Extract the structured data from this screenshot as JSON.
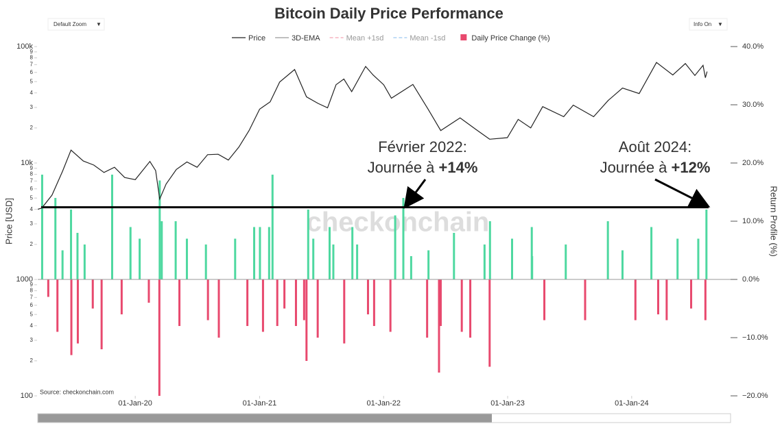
{
  "controls": {
    "zoom": "Default Zoom",
    "info": "Info On"
  },
  "chart_data": {
    "type": "price-returns",
    "title": "Bitcoin Daily Price Performance",
    "y_label": "Price [USD]",
    "y2_label": "Return Profile (%)",
    "source": "Source: checkonchain.com",
    "watermark": "checkonchain",
    "log_y": true,
    "xlim": [
      "2019-03-20",
      "2024-10-18"
    ],
    "xticks": [
      {
        "value": "2020-01-01",
        "label": "01-Jan-20"
      },
      {
        "value": "2021-01-01",
        "label": "01-Jan-21"
      },
      {
        "value": "2022-01-01",
        "label": "01-Jan-22"
      },
      {
        "value": "2023-01-01",
        "label": "01-Jan-23"
      },
      {
        "value": "2024-01-01",
        "label": "01-Jan-24"
      }
    ],
    "ylim": [
      100,
      100000
    ],
    "yticks": [
      100,
      {
        "value": 200,
        "label": "2"
      },
      {
        "value": 300,
        "label": "3"
      },
      {
        "value": 400,
        "label": "4"
      },
      {
        "value": 500,
        "label": "5"
      },
      {
        "value": 600,
        "label": "6"
      },
      {
        "value": 700,
        "label": "7"
      },
      {
        "value": 800,
        "label": "8"
      },
      {
        "value": 900,
        "label": "9"
      },
      1000,
      {
        "value": 2000,
        "label": "2"
      },
      {
        "value": 3000,
        "label": "3"
      },
      {
        "value": 4000,
        "label": "4"
      },
      {
        "value": 5000,
        "label": "5"
      },
      {
        "value": 6000,
        "label": "6"
      },
      {
        "value": 7000,
        "label": "7"
      },
      {
        "value": 8000,
        "label": "8"
      },
      {
        "value": 9000,
        "label": "9"
      },
      {
        "value": 10000,
        "label": "10k"
      },
      {
        "value": 20000,
        "label": "2"
      },
      {
        "value": 30000,
        "label": "3"
      },
      {
        "value": 40000,
        "label": "4"
      },
      {
        "value": 50000,
        "label": "5"
      },
      {
        "value": 60000,
        "label": "6"
      },
      {
        "value": 70000,
        "label": "7"
      },
      {
        "value": 80000,
        "label": "8"
      },
      {
        "value": 90000,
        "label": "9"
      },
      {
        "value": 100000,
        "label": "100k"
      }
    ],
    "y2lim": [
      -20,
      40
    ],
    "y2ticks": [
      {
        "value": -20,
        "label": "−20.0%"
      },
      {
        "value": -10,
        "label": "−10.0%"
      },
      {
        "value": 0,
        "label": "0.0%"
      },
      {
        "value": 10,
        "label": "10.0%"
      },
      {
        "value": 20,
        "label": "20.0%"
      },
      {
        "value": 30,
        "label": "30.0%"
      },
      {
        "value": 40,
        "label": "40.0%"
      }
    ],
    "legend_extra": [
      {
        "name": "3D-EMA",
        "color": "#999999"
      },
      {
        "name": "Mean +1sd",
        "color": "#f4a3b4"
      },
      {
        "name": "Mean -1sd",
        "color": "#9cc8f0"
      }
    ],
    "series": [
      {
        "name": "Price",
        "color": "#222222",
        "x": [
          "2019-03-20",
          "2019-04-01",
          "2019-05-01",
          "2019-06-01",
          "2019-06-26",
          "2019-08-01",
          "2019-09-01",
          "2019-10-01",
          "2019-11-01",
          "2019-12-01",
          "2020-01-01",
          "2020-02-13",
          "2020-03-01",
          "2020-03-13",
          "2020-04-01",
          "2020-05-01",
          "2020-06-01",
          "2020-07-01",
          "2020-08-01",
          "2020-09-01",
          "2020-10-01",
          "2020-11-01",
          "2020-12-01",
          "2021-01-01",
          "2021-02-01",
          "2021-03-01",
          "2021-04-14",
          "2021-05-19",
          "2021-06-22",
          "2021-07-20",
          "2021-08-14",
          "2021-09-06",
          "2021-09-29",
          "2021-11-09",
          "2021-12-01",
          "2022-01-01",
          "2022-01-24",
          "2022-03-28",
          "2022-05-12",
          "2022-06-18",
          "2022-08-14",
          "2022-10-01",
          "2022-11-09",
          "2022-12-31",
          "2023-02-01",
          "2023-03-10",
          "2023-04-14",
          "2023-06-15",
          "2023-07-13",
          "2023-09-11",
          "2023-10-24",
          "2023-12-05",
          "2024-01-23",
          "2024-03-14",
          "2024-05-01",
          "2024-06-07",
          "2024-07-05",
          "2024-07-29",
          "2024-08-05",
          "2024-08-10"
        ],
        "values": [
          4000,
          4100,
          5300,
          8500,
          12900,
          10400,
          9600,
          8300,
          9200,
          7500,
          7200,
          10300,
          8600,
          4900,
          6600,
          8800,
          10200,
          9200,
          11800,
          11900,
          10600,
          13700,
          19000,
          29000,
          33500,
          49600,
          63500,
          37000,
          32500,
          29800,
          47000,
          52600,
          41000,
          67500,
          57000,
          47000,
          36000,
          47300,
          29000,
          19000,
          24400,
          19300,
          16000,
          16500,
          23700,
          20000,
          30500,
          25000,
          31400,
          25000,
          34500,
          44000,
          39500,
          73000,
          57000,
          71500,
          56500,
          69000,
          54000,
          61000
        ]
      },
      {
        "name": "Daily Price Change (%)",
        "axis": "y2",
        "color": "#e8496e",
        "positive_color": "#4ed8a0",
        "x": [
          "2019-04-02",
          "2019-04-20",
          "2019-05-11",
          "2019-05-17",
          "2019-06-01",
          "2019-06-26",
          "2019-06-27",
          "2019-07-15",
          "2019-07-16",
          "2019-08-05",
          "2019-08-29",
          "2019-09-24",
          "2019-10-25",
          "2019-11-22",
          "2019-12-18",
          "2020-01-14",
          "2020-02-10",
          "2020-03-12",
          "2020-03-13",
          "2020-03-19",
          "2020-04-29",
          "2020-05-10",
          "2020-06-01",
          "2020-07-27",
          "2020-08-02",
          "2020-09-03",
          "2020-10-21",
          "2020-11-26",
          "2020-12-16",
          "2021-01-02",
          "2021-01-11",
          "2021-01-29",
          "2021-02-08",
          "2021-02-22",
          "2021-03-15",
          "2021-04-18",
          "2021-05-12",
          "2021-05-19",
          "2021-05-24",
          "2021-06-08",
          "2021-06-21",
          "2021-07-26",
          "2021-08-06",
          "2021-09-07",
          "2021-10-01",
          "2021-10-15",
          "2021-11-16",
          "2021-12-04",
          "2022-01-21",
          "2022-02-04",
          "2022-02-28",
          "2022-03-23",
          "2022-05-09",
          "2022-05-13",
          "2022-06-13",
          "2022-06-18",
          "2022-07-27",
          "2022-08-19",
          "2022-09-13",
          "2022-10-25",
          "2022-11-09",
          "2022-11-10",
          "2023-01-14",
          "2023-03-13",
          "2023-03-14",
          "2023-04-19",
          "2023-06-21",
          "2023-08-17",
          "2023-10-23",
          "2023-12-05",
          "2024-01-12",
          "2024-02-28",
          "2024-03-19",
          "2024-04-13",
          "2024-05-15",
          "2024-06-24",
          "2024-07-15",
          "2024-08-05",
          "2024-08-08"
        ],
        "values": [
          18,
          -3,
          14,
          -9,
          5,
          12,
          -13,
          8,
          -11,
          6,
          -5,
          -12,
          18,
          -6,
          9,
          7,
          -4,
          -20,
          17,
          10,
          10,
          -8,
          7,
          6,
          -7,
          -10,
          7,
          -8,
          9,
          9,
          -9,
          9,
          18,
          -8,
          -5,
          -8,
          -7,
          -14,
          12,
          7,
          -10,
          9,
          6,
          -11,
          9,
          6,
          -6,
          -8,
          -9,
          11,
          14,
          4,
          -10,
          5,
          -16,
          -8,
          8,
          -9,
          -10,
          6,
          -15,
          10,
          7,
          9,
          4,
          -7,
          6,
          -7,
          10,
          5,
          -7,
          9,
          -6,
          -7,
          7,
          -5,
          7,
          -7,
          12
        ]
      }
    ],
    "reference_line": 12.4,
    "annotations": [
      {
        "line1": "Février 2022:",
        "line2": "Journée à ",
        "bold": "+14%"
      },
      {
        "line1": "Août 2024:",
        "line2": "Journée à ",
        "bold": "+12%"
      }
    ]
  }
}
